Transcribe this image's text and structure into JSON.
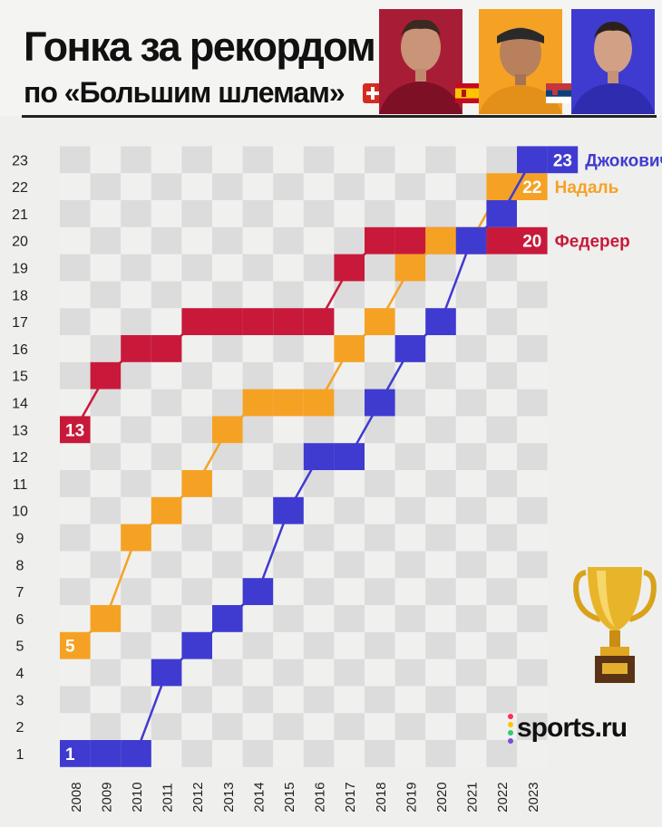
{
  "header": {
    "title_line1": "Гонка за рекордом",
    "title_line2": "по «Большим шлемам»"
  },
  "portraits": [
    {
      "player": "Федерер",
      "flag": "switzerland-flag"
    },
    {
      "player": "Надаль",
      "flag": "spain-flag"
    },
    {
      "player": "Джокович",
      "flag": "serbia-flag"
    }
  ],
  "logo": {
    "text": "sports.ru"
  },
  "icons": {
    "trophy": "trophy-icon"
  },
  "chart_data": {
    "type": "line",
    "categories": [
      "2008",
      "2009",
      "2010",
      "2011",
      "2012",
      "2013",
      "2014",
      "2015",
      "2016",
      "2017",
      "2018",
      "2019",
      "2020",
      "2021",
      "2022",
      "2023"
    ],
    "ylim": [
      1,
      23
    ],
    "yticks": [
      1,
      2,
      3,
      4,
      5,
      6,
      7,
      8,
      9,
      10,
      11,
      12,
      13,
      14,
      15,
      16,
      17,
      18,
      19,
      20,
      21,
      22,
      23
    ],
    "series": [
      {
        "name": "Федерер",
        "color": "#c8193a",
        "values": [
          13,
          15,
          16,
          16,
          17,
          17,
          17,
          17,
          17,
          19,
          20,
          20,
          20,
          20,
          20,
          null
        ],
        "start_label": "13",
        "end_label": "20"
      },
      {
        "name": "Надаль",
        "color": "#f5a224",
        "values": [
          5,
          6,
          9,
          10,
          11,
          13,
          14,
          14,
          14,
          16,
          17,
          19,
          20,
          20,
          22,
          null
        ],
        "start_label": "5",
        "end_label": "22"
      },
      {
        "name": "Джокович",
        "color": "#3f3bd0",
        "values": [
          1,
          1,
          1,
          4,
          5,
          6,
          7,
          10,
          12,
          12,
          14,
          16,
          17,
          20,
          21,
          23
        ],
        "start_label": "1",
        "end_label": "23"
      }
    ]
  }
}
